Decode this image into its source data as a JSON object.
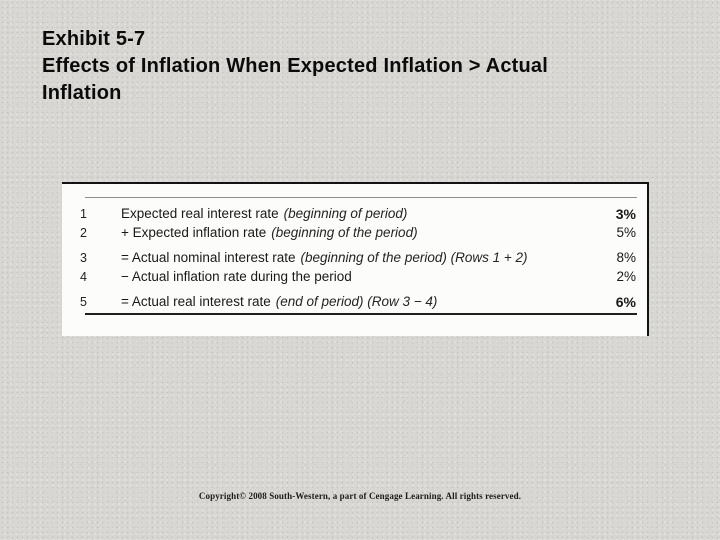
{
  "slide": {
    "title_lines": [
      "Exhibit 5-7",
      "Effects of Inflation When Expected Inflation > Actual",
      "Inflation"
    ]
  },
  "exhibit_table": {
    "rows": [
      {
        "num": "1",
        "label": "Expected real interest rate",
        "note": "(beginning of period)",
        "value": "3%"
      },
      {
        "num": "2",
        "label": "+ Expected inflation rate",
        "note": "(beginning of the period)",
        "value": "5%"
      },
      {
        "num": "3",
        "label": "= Actual nominal interest rate",
        "note": "(beginning of the period) (Rows 1 + 2)",
        "value": "8%"
      },
      {
        "num": "4",
        "label": "− Actual inflation rate during the period",
        "note": "",
        "value": "2%"
      },
      {
        "num": "5",
        "label": "= Actual real interest rate",
        "note": "(end of period) (Row 3 − 4)",
        "value": "6%"
      }
    ]
  },
  "footer": {
    "copyright": "Copyright© 2008 South-Western, a part of Cengage Learning. All rights reserved."
  },
  "colors": {
    "background": "#d8d7d3",
    "panel": "#fcfcfa",
    "panel_border": "#131313",
    "text": "#191919"
  }
}
